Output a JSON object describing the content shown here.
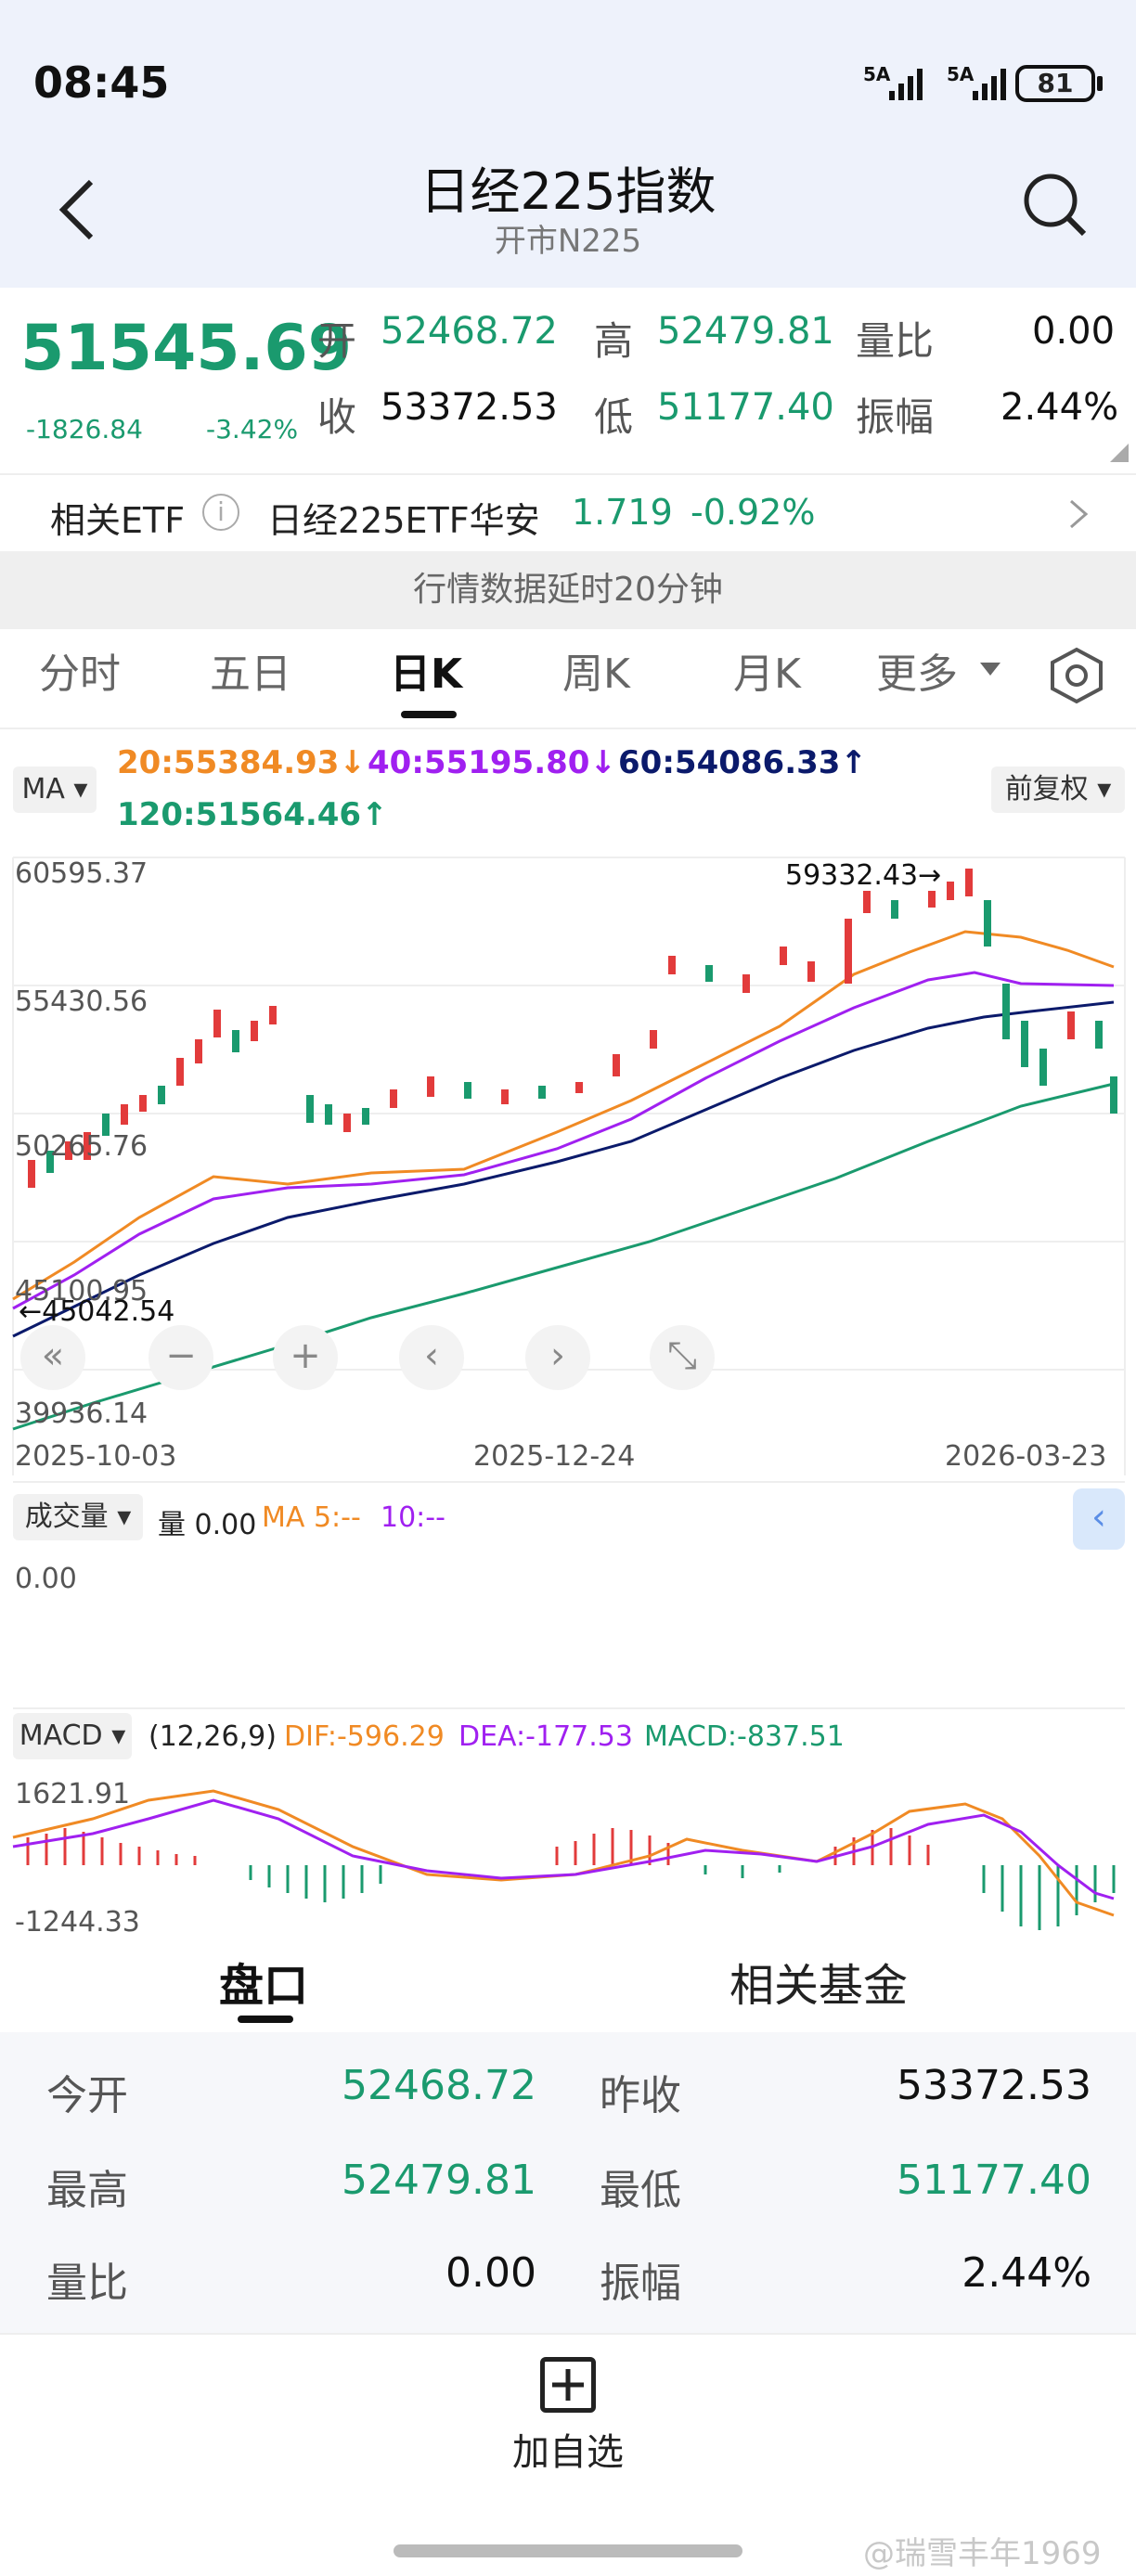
{
  "status": {
    "time": "08:45",
    "signal1": "5A",
    "signal2": "5A",
    "battery": "81"
  },
  "header": {
    "title": "日经225指数",
    "subtitle": "开市N225"
  },
  "quote": {
    "price": "51545.69",
    "change": "-1826.84",
    "change_pct": "-3.42%",
    "open_label": "开",
    "open": "52468.72",
    "high_label": "高",
    "high": "52479.81",
    "close_label": "收",
    "prev_close": "53372.53",
    "low_label": "低",
    "low": "51177.40",
    "vol_ratio_label": "量比",
    "vol_ratio": "0.00",
    "amplitude_label": "振幅",
    "amplitude": "2.44%"
  },
  "etf": {
    "label": "相关ETF",
    "name": "日经225ETF华安",
    "price": "1.719",
    "change_pct": "-0.92%"
  },
  "delay_notice": "行情数据延时20分钟",
  "tabs": [
    "分时",
    "五日",
    "日K",
    "周K",
    "月K",
    "更多"
  ],
  "active_tab": "日K",
  "ma": {
    "tag": "MA",
    "ma20": "20:55384.93↓",
    "ma40": "40:55195.80↓",
    "ma60": "60:54086.33↑",
    "ma120": "120:51564.46↑",
    "adjust": "前复权"
  },
  "kline": {
    "y_labels": [
      "60595.37",
      "55430.56",
      "50265.76",
      "45100.95",
      "39936.14"
    ],
    "high_marker": "59332.43→",
    "low_marker": "←45042.54",
    "x_labels": [
      "2025-10-03",
      "2025-12-24",
      "2026-03-23"
    ]
  },
  "volume": {
    "tag": "成交量",
    "vol": "量 0.00",
    "ma5": "MA 5:--",
    "ma10": "10:--",
    "y_label": "0.00"
  },
  "macd": {
    "tag": "MACD",
    "params": "(12,26,9)",
    "dif": "DIF:-596.29",
    "dea": "DEA:-177.53",
    "macd": "MACD:-837.51",
    "y_top": "1621.91",
    "y_bottom": "-1244.33"
  },
  "bottom_tabs": [
    "盘口",
    "相关基金"
  ],
  "details": {
    "open_label": "今开",
    "open": "52468.72",
    "prev_close_label": "昨收",
    "prev_close": "53372.53",
    "high_label": "最高",
    "high": "52479.81",
    "low_label": "最低",
    "low": "51177.40",
    "vol_ratio_label": "量比",
    "vol_ratio": "0.00",
    "amplitude_label": "振幅",
    "amplitude": "2.44%"
  },
  "add_watchlist": "加自选",
  "watermark": "@瑞雪丰年1969",
  "colors": {
    "up": "#e23b3b",
    "down": "#1a9a6e",
    "ma20": "#f08a24",
    "ma40": "#a020f0",
    "ma60": "#0b1a6b",
    "ma120": "#1a9a6e"
  }
}
